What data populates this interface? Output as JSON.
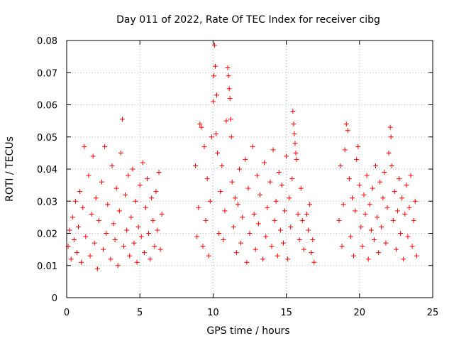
{
  "chart_data": {
    "type": "scatter",
    "title": "Day 011 of 2022, Rate Of TEC Index for receiver cibg",
    "xlabel": "GPS time / hours",
    "ylabel": "ROTI / TECUs",
    "xlim": [
      0,
      25
    ],
    "ylim": [
      0,
      0.08
    ],
    "grid": true,
    "marker": "+",
    "x_ticks": [
      0,
      5,
      10,
      15,
      20,
      25
    ],
    "x_tick_labels": [
      "0",
      "5",
      "10",
      "15",
      "20",
      "25"
    ],
    "y_ticks": [
      0,
      0.01,
      0.02,
      0.03,
      0.04,
      0.05,
      0.06,
      0.07,
      0.08
    ],
    "y_tick_labels": [
      "0",
      "0.01",
      "0.02",
      "0.03",
      "0.04",
      "0.05",
      "0.06",
      "0.07",
      "0.08"
    ],
    "series": [
      {
        "name": "ROTI",
        "color": "#ff0000",
        "points": [
          [
            0.1,
            0.016
          ],
          [
            0.2,
            0.021
          ],
          [
            0.3,
            0.012
          ],
          [
            0.4,
            0.025
          ],
          [
            0.5,
            0.018
          ],
          [
            0.6,
            0.03
          ],
          [
            0.7,
            0.014
          ],
          [
            0.8,
            0.022
          ],
          [
            0.9,
            0.033
          ],
          [
            1.0,
            0.011
          ],
          [
            1.1,
            0.028
          ],
          [
            1.2,
            0.047
          ],
          [
            1.3,
            0.019
          ],
          [
            1.5,
            0.038
          ],
          [
            1.6,
            0.013
          ],
          [
            1.7,
            0.026
          ],
          [
            1.8,
            0.044
          ],
          [
            1.9,
            0.017
          ],
          [
            2.0,
            0.031
          ],
          [
            2.1,
            0.009
          ],
          [
            2.2,
            0.024
          ],
          [
            2.4,
            0.036
          ],
          [
            2.5,
            0.015
          ],
          [
            2.6,
            0.047
          ],
          [
            2.7,
            0.02
          ],
          [
            2.8,
            0.029
          ],
          [
            3.0,
            0.012
          ],
          [
            3.1,
            0.041
          ],
          [
            3.2,
            0.023
          ],
          [
            3.3,
            0.018
          ],
          [
            3.4,
            0.034
          ],
          [
            3.5,
            0.01
          ],
          [
            3.6,
            0.027
          ],
          [
            3.7,
            0.045
          ],
          [
            3.8,
            0.0555
          ],
          [
            3.9,
            0.016
          ],
          [
            4.0,
            0.032
          ],
          [
            4.1,
            0.021
          ],
          [
            4.2,
            0.038
          ],
          [
            4.3,
            0.013
          ],
          [
            4.4,
            0.025
          ],
          [
            4.5,
            0.04
          ],
          [
            4.6,
            0.017
          ],
          [
            4.7,
            0.03
          ],
          [
            4.8,
            0.011
          ],
          [
            4.9,
            0.022
          ],
          [
            5.0,
            0.035
          ],
          [
            5.1,
            0.019
          ],
          [
            5.2,
            0.042
          ],
          [
            5.3,
            0.014
          ],
          [
            5.4,
            0.028
          ],
          [
            5.5,
            0.037
          ],
          [
            5.6,
            0.02
          ],
          [
            5.7,
            0.012
          ],
          [
            5.8,
            0.031
          ],
          [
            5.9,
            0.024
          ],
          [
            6.0,
            0.016
          ],
          [
            6.1,
            0.033
          ],
          [
            6.2,
            0.021
          ],
          [
            6.3,
            0.039
          ],
          [
            6.4,
            0.015
          ],
          [
            6.5,
            0.026
          ],
          [
            8.8,
            0.041
          ],
          [
            8.9,
            0.019
          ],
          [
            9.0,
            0.028
          ],
          [
            9.1,
            0.054
          ],
          [
            9.2,
            0.053
          ],
          [
            9.3,
            0.016
          ],
          [
            9.4,
            0.047
          ],
          [
            9.5,
            0.024
          ],
          [
            9.6,
            0.037
          ],
          [
            9.7,
            0.013
          ],
          [
            9.8,
            0.03
          ],
          [
            9.9,
            0.05
          ],
          [
            10.0,
            0.061
          ],
          [
            10.05,
            0.069
          ],
          [
            10.1,
            0.0785
          ],
          [
            10.15,
            0.072
          ],
          [
            10.2,
            0.051
          ],
          [
            10.25,
            0.063
          ],
          [
            10.3,
            0.045
          ],
          [
            10.4,
            0.02
          ],
          [
            10.5,
            0.033
          ],
          [
            10.6,
            0.041
          ],
          [
            10.7,
            0.018
          ],
          [
            10.8,
            0.027
          ],
          [
            10.9,
            0.055
          ],
          [
            11.0,
            0.0715
          ],
          [
            11.05,
            0.069
          ],
          [
            11.1,
            0.065
          ],
          [
            11.15,
            0.062
          ],
          [
            11.2,
            0.0555
          ],
          [
            11.25,
            0.05
          ],
          [
            11.3,
            0.036
          ],
          [
            11.4,
            0.022
          ],
          [
            11.5,
            0.031
          ],
          [
            11.6,
            0.014
          ],
          [
            11.7,
            0.029
          ],
          [
            11.8,
            0.04
          ],
          [
            11.9,
            0.017
          ],
          [
            12.0,
            0.025
          ],
          [
            12.2,
            0.043
          ],
          [
            12.3,
            0.011
          ],
          [
            12.4,
            0.034
          ],
          [
            12.5,
            0.02
          ],
          [
            12.7,
            0.047
          ],
          [
            12.8,
            0.026
          ],
          [
            12.9,
            0.015
          ],
          [
            13.0,
            0.038
          ],
          [
            13.1,
            0.023
          ],
          [
            13.2,
            0.032
          ],
          [
            13.4,
            0.012
          ],
          [
            13.5,
            0.042
          ],
          [
            13.6,
            0.019
          ],
          [
            13.7,
            0.028
          ],
          [
            13.9,
            0.036
          ],
          [
            14.0,
            0.016
          ],
          [
            14.1,
            0.046
          ],
          [
            14.2,
            0.024
          ],
          [
            14.3,
            0.03
          ],
          [
            14.4,
            0.013
          ],
          [
            14.5,
            0.039
          ],
          [
            14.6,
            0.021
          ],
          [
            14.7,
            0.035
          ],
          [
            14.8,
            0.017
          ],
          [
            14.9,
            0.027
          ],
          [
            15.0,
            0.044
          ],
          [
            15.1,
            0.012
          ],
          [
            15.2,
            0.031
          ],
          [
            15.3,
            0.022
          ],
          [
            15.4,
            0.037
          ],
          [
            15.45,
            0.058
          ],
          [
            15.5,
            0.054
          ],
          [
            15.55,
            0.051
          ],
          [
            15.6,
            0.048
          ],
          [
            15.65,
            0.045
          ],
          [
            15.7,
            0.043
          ],
          [
            15.8,
            0.026
          ],
          [
            15.9,
            0.018
          ],
          [
            16.0,
            0.034
          ],
          [
            16.1,
            0.024
          ],
          [
            16.2,
            0.015
          ],
          [
            16.4,
            0.026
          ],
          [
            16.5,
            0.021
          ],
          [
            16.6,
            0.029
          ],
          [
            16.7,
            0.014
          ],
          [
            16.8,
            0.018
          ],
          [
            16.9,
            0.011
          ],
          [
            18.6,
            0.024
          ],
          [
            18.7,
            0.041
          ],
          [
            18.8,
            0.016
          ],
          [
            18.9,
            0.029
          ],
          [
            19.0,
            0.046
          ],
          [
            19.1,
            0.054
          ],
          [
            19.2,
            0.052
          ],
          [
            19.3,
            0.037
          ],
          [
            19.4,
            0.019
          ],
          [
            19.5,
            0.031
          ],
          [
            19.6,
            0.013
          ],
          [
            19.7,
            0.027
          ],
          [
            19.8,
            0.043
          ],
          [
            19.9,
            0.047
          ],
          [
            20.0,
            0.035
          ],
          [
            20.1,
            0.022
          ],
          [
            20.2,
            0.016
          ],
          [
            20.3,
            0.032
          ],
          [
            20.4,
            0.026
          ],
          [
            20.5,
            0.038
          ],
          [
            20.6,
            0.012
          ],
          [
            20.7,
            0.029
          ],
          [
            20.8,
            0.021
          ],
          [
            20.9,
            0.034
          ],
          [
            21.0,
            0.018
          ],
          [
            21.1,
            0.041
          ],
          [
            21.2,
            0.025
          ],
          [
            21.3,
            0.014
          ],
          [
            21.4,
            0.036
          ],
          [
            21.5,
            0.022
          ],
          [
            21.6,
            0.031
          ],
          [
            21.7,
            0.039
          ],
          [
            21.8,
            0.017
          ],
          [
            21.9,
            0.028
          ],
          [
            22.0,
            0.045
          ],
          [
            22.1,
            0.053
          ],
          [
            22.15,
            0.05
          ],
          [
            22.2,
            0.041
          ],
          [
            22.3,
            0.024
          ],
          [
            22.4,
            0.033
          ],
          [
            22.5,
            0.015
          ],
          [
            22.6,
            0.027
          ],
          [
            22.7,
            0.037
          ],
          [
            22.8,
            0.02
          ],
          [
            22.9,
            0.031
          ],
          [
            23.0,
            0.012
          ],
          [
            23.1,
            0.026
          ],
          [
            23.2,
            0.035
          ],
          [
            23.3,
            0.019
          ],
          [
            23.4,
            0.028
          ],
          [
            23.5,
            0.038
          ],
          [
            23.6,
            0.016
          ],
          [
            23.7,
            0.024
          ],
          [
            23.8,
            0.03
          ],
          [
            23.9,
            0.013
          ]
        ]
      }
    ]
  }
}
